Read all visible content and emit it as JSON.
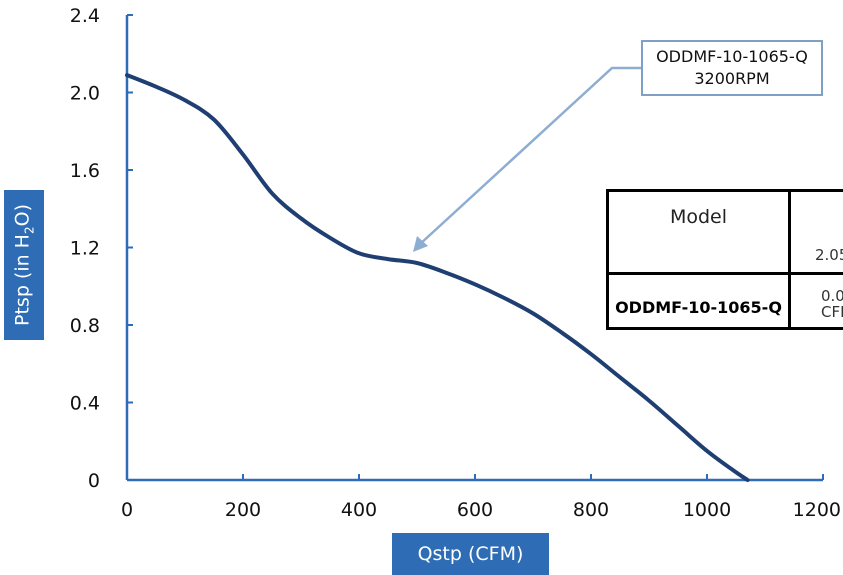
{
  "chart_data": {
    "type": "line",
    "xlabel": "Qstp (CFM)",
    "ylabel_main": "Ptsp (in H",
    "ylabel_sub": "2",
    "ylabel_end": "O)",
    "xlim": [
      0,
      1200
    ],
    "ylim": [
      0,
      2.4
    ],
    "x_ticks": [
      "0",
      "200",
      "400",
      "600",
      "800",
      "1000",
      "1200"
    ],
    "y_ticks": [
      "0",
      "0.4",
      "0.8",
      "1.2",
      "1.6",
      "2.0",
      "2.4"
    ],
    "grid": false,
    "series": [
      {
        "name": "ODDMF-10-1065-Q 3200RPM",
        "color": "#1f3f73",
        "x": [
          0,
          50,
          100,
          150,
          200,
          250,
          300,
          350,
          400,
          450,
          500,
          550,
          600,
          650,
          700,
          750,
          800,
          850,
          900,
          950,
          1000,
          1050,
          1070
        ],
        "y": [
          2.09,
          2.03,
          1.96,
          1.86,
          1.68,
          1.48,
          1.35,
          1.25,
          1.17,
          1.14,
          1.12,
          1.07,
          1.01,
          0.94,
          0.86,
          0.76,
          0.65,
          0.53,
          0.41,
          0.28,
          0.15,
          0.04,
          0.0
        ]
      }
    ],
    "annotation": {
      "line1": "ODDMF-10-1065-Q",
      "line2": "3200RPM",
      "target_x": 500,
      "target_y": 1.19
    }
  },
  "table": {
    "header_model": "Model",
    "header_value_partial": "2.05",
    "row_model": "ODDMF-10-1065-Q",
    "row_value_partial_1": "0.0",
    "row_value_partial_2": "CFI"
  }
}
